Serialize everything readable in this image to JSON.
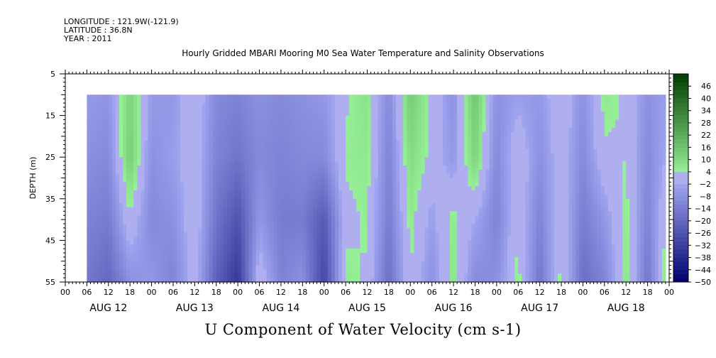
{
  "header": {
    "longitude": "LONGITUDE : 121.9W(-121.9)",
    "latitude": "LATITUDE : 36.8N",
    "year": "YEAR : 2011"
  },
  "title": "Hourly Gridded MBARI Mooring M0 Sea Water Temperature and Salinity Observations",
  "bottom_title": "U Component of Water Velocity (cm s-1)",
  "chart_data": {
    "type": "heatmap",
    "title": "Hourly Gridded MBARI Mooring M0 Sea Water Temperature and Salinity Observations",
    "xlabel": "",
    "ylabel": "DEPTH (m)",
    "y_ticks": [
      5,
      15,
      25,
      35,
      45,
      55
    ],
    "ylim": [
      5,
      55
    ],
    "y_inverted": true,
    "hour_tick_labels": [
      "00",
      "06",
      "12",
      "18"
    ],
    "day_labels": [
      "AUG 12",
      "AUG 13",
      "AUG 14",
      "AUG 15",
      "AUG 16",
      "AUG 17",
      "AUG 18"
    ],
    "x_unit": "hours since 2011-08-12 00:00",
    "xlim_hours": [
      0,
      168
    ],
    "data_start_hour": 6,
    "data_end_hour": 167,
    "data_depth_range": [
      10,
      55
    ],
    "colorbar": {
      "ticks": [
        46,
        40,
        34,
        28,
        22,
        16,
        10,
        4,
        -2,
        -8,
        -14,
        -20,
        -26,
        -32,
        -38,
        -44,
        -50
      ],
      "range": [
        -50,
        52
      ]
    },
    "sample_depths": [
      10,
      25,
      40,
      55
    ],
    "u_profiles": [
      {
        "hour": 6,
        "u": [
          -5,
          -8,
          -12,
          -15
        ]
      },
      {
        "hour": 12,
        "u": [
          -7,
          -10,
          -14,
          -20
        ]
      },
      {
        "hour": 18,
        "u": [
          12,
          14,
          3,
          -8
        ]
      },
      {
        "hour": 24,
        "u": [
          -5,
          -8,
          -10,
          -6
        ]
      },
      {
        "hour": 30,
        "u": [
          -6,
          -4,
          -8,
          -12
        ]
      },
      {
        "hour": 36,
        "u": [
          4,
          3,
          3,
          2
        ]
      },
      {
        "hour": 42,
        "u": [
          -10,
          -12,
          -16,
          -22
        ]
      },
      {
        "hour": 48,
        "u": [
          -12,
          -16,
          -26,
          -34
        ]
      },
      {
        "hour": 54,
        "u": [
          -8,
          -10,
          -6,
          3
        ]
      },
      {
        "hour": 60,
        "u": [
          -10,
          -12,
          -14,
          -12
        ]
      },
      {
        "hour": 66,
        "u": [
          -8,
          -10,
          -14,
          -8
        ]
      },
      {
        "hour": 72,
        "u": [
          -6,
          -10,
          -24,
          -30
        ]
      },
      {
        "hour": 78,
        "u": [
          3,
          5,
          2,
          6
        ]
      },
      {
        "hour": 84,
        "u": [
          8,
          6,
          5,
          3
        ]
      },
      {
        "hour": 90,
        "u": [
          -10,
          -12,
          -14,
          -18
        ]
      },
      {
        "hour": 96,
        "u": [
          14,
          10,
          6,
          4
        ]
      },
      {
        "hour": 102,
        "u": [
          3,
          2,
          -4,
          -8
        ]
      },
      {
        "hour": 108,
        "u": [
          -8,
          -6,
          6,
          8
        ]
      },
      {
        "hour": 114,
        "u": [
          16,
          12,
          -2,
          -10
        ]
      },
      {
        "hour": 120,
        "u": [
          -8,
          -10,
          -12,
          -8
        ]
      },
      {
        "hour": 126,
        "u": [
          -4,
          3,
          4,
          6
        ]
      },
      {
        "hour": 132,
        "u": [
          -6,
          -8,
          -12,
          -16
        ]
      },
      {
        "hour": 138,
        "u": [
          4,
          2,
          4,
          6
        ]
      },
      {
        "hour": 144,
        "u": [
          -8,
          -10,
          -14,
          -18
        ]
      },
      {
        "hour": 150,
        "u": [
          6,
          3,
          -6,
          -12
        ]
      },
      {
        "hour": 156,
        "u": [
          3,
          4,
          6,
          8
        ]
      },
      {
        "hour": 162,
        "u": [
          -8,
          -10,
          -12,
          -16
        ]
      },
      {
        "hour": 167,
        "u": [
          -4,
          -2,
          4,
          8
        ]
      }
    ]
  }
}
